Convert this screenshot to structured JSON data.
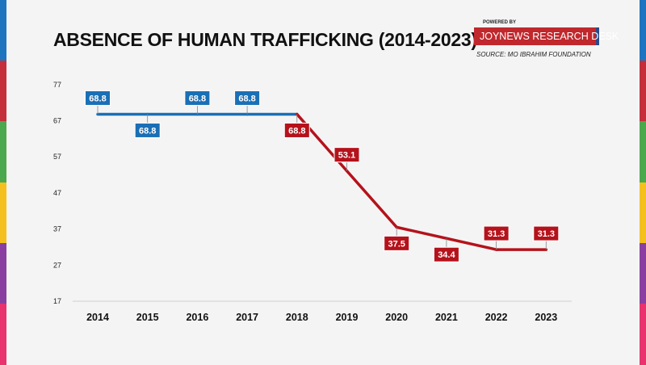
{
  "title": "ABSENCE OF HUMAN TRAFFICKING (2014-2023)",
  "branding": {
    "powered_by": "POWERED BY",
    "name": "JOYNEWS RESEARCH DESK",
    "source": "SOURCE: MO IBRAHIM FOUNDATION"
  },
  "colors": {
    "series_blue": "#1a6fb5",
    "series_red": "#b5121b",
    "stripes": [
      "#1f74c0",
      "#c42f3b",
      "#4ca84c",
      "#f4c01e",
      "#8a3fa0",
      "#e8336e"
    ]
  },
  "chart_data": {
    "type": "line",
    "title": "ABSENCE OF HUMAN TRAFFICKING (2014-2023)",
    "x": [
      "2014",
      "2015",
      "2016",
      "2017",
      "2018",
      "2019",
      "2020",
      "2021",
      "2022",
      "2023"
    ],
    "values": [
      68.8,
      68.8,
      68.8,
      68.8,
      68.8,
      53.1,
      37.5,
      34.4,
      31.3,
      31.3
    ],
    "labels": [
      "68.8",
      "68.8",
      "68.8",
      "68.8",
      "68.8",
      "53.1",
      "37.5",
      "34.4",
      "31.3",
      "31.3"
    ],
    "label_position": [
      "above",
      "below",
      "above",
      "above",
      "below",
      "above",
      "below",
      "below",
      "above",
      "above"
    ],
    "segment_colors": [
      "blue",
      "blue",
      "blue",
      "blue",
      "red",
      "red",
      "red",
      "red",
      "red"
    ],
    "label_colors": [
      "blue",
      "blue",
      "blue",
      "blue",
      "red",
      "red",
      "red",
      "red",
      "red",
      "red"
    ],
    "yticks": [
      "17",
      "27",
      "37",
      "47",
      "57",
      "67",
      "77"
    ],
    "ylim": [
      17,
      77
    ],
    "grid": false,
    "legend": "none"
  }
}
